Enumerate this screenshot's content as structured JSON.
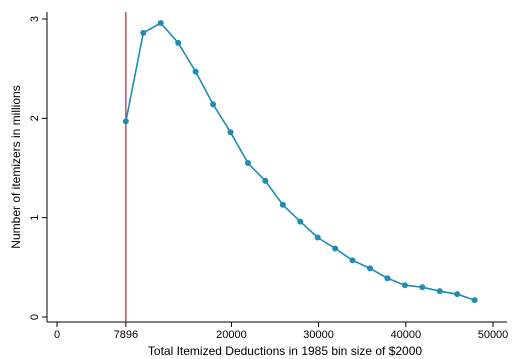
{
  "chart_data": {
    "type": "line",
    "xlabel": "Total Itemized Deductions in 1985 bin size of $2000",
    "ylabel": "Number of itemizers in millions",
    "xlim": [
      0,
      50000
    ],
    "ylim": [
      0,
      3
    ],
    "x_ticks": [
      0,
      7896,
      20000,
      30000,
      40000,
      50000
    ],
    "x_tick_labels": [
      "0",
      "7896",
      "20000",
      "30000",
      "40000",
      "50000"
    ],
    "y_ticks": [
      0,
      1,
      2,
      3
    ],
    "y_tick_labels": [
      "0",
      "1",
      "2",
      "3"
    ],
    "grid": false,
    "reference_line": {
      "x": 7896,
      "color": "#b0223a"
    },
    "series": [
      {
        "color": "#1f8cb4",
        "x": [
          7896,
          9896,
          11896,
          13896,
          15896,
          17896,
          19896,
          21896,
          23896,
          25896,
          27896,
          29896,
          31896,
          33896,
          35896,
          37896,
          39896,
          41896,
          43896,
          45896,
          47896
        ],
        "y": [
          1.97,
          2.86,
          2.96,
          2.76,
          2.47,
          2.14,
          1.86,
          1.55,
          1.37,
          1.13,
          0.96,
          0.8,
          0.69,
          0.57,
          0.49,
          0.39,
          0.32,
          0.3,
          0.26,
          0.23,
          0.17
        ]
      }
    ]
  }
}
